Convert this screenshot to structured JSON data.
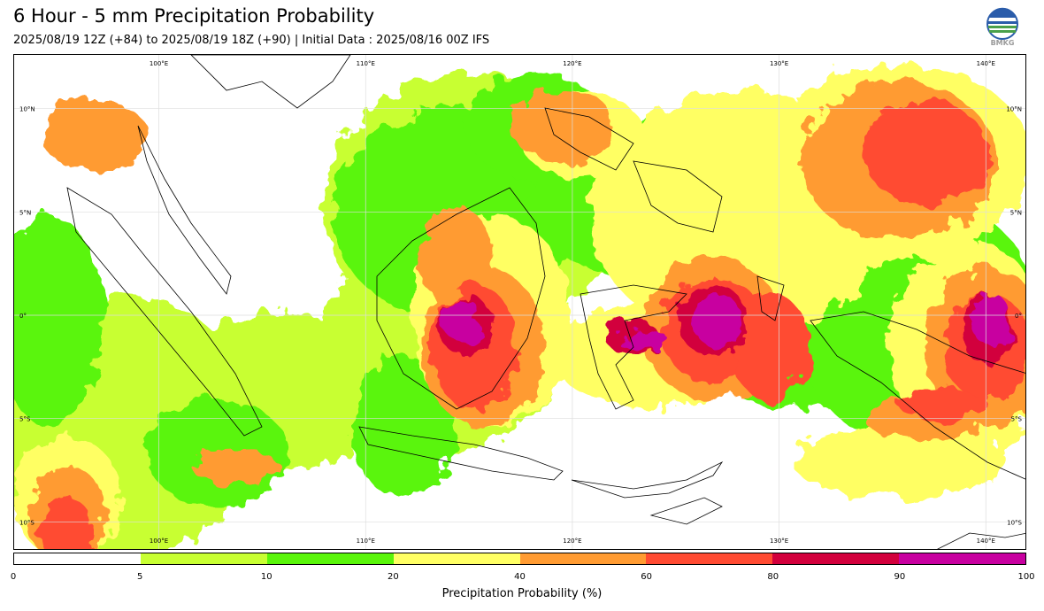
{
  "header": {
    "title": "6 Hour - 5 mm Precipitation Probability",
    "subtitle": "2025/08/19 12Z (+84) to 2025/08/19 18Z (+90) | Initial Data : 2025/08/16 00Z IFS",
    "logo_text": "BMKG"
  },
  "map": {
    "lat_labels": [
      "10°N",
      "5°N",
      "0°",
      "5°S",
      "10°S"
    ],
    "lon_labels": [
      "100°E",
      "110°E",
      "120°E",
      "130°E",
      "140°E"
    ],
    "colors": {
      "coast": "#000000",
      "grid": "#dddddd"
    }
  },
  "colorbar": {
    "label": "Precipitation Probability (%)",
    "ticks": [
      "0",
      "5",
      "10",
      "20",
      "40",
      "60",
      "80",
      "90",
      "100"
    ],
    "colors": [
      "#ffffff",
      "#c8ff32",
      "#5af50a",
      "#ffff64",
      "#ff9b32",
      "#ff4b32",
      "#d2003c",
      "#c800a0"
    ]
  }
}
